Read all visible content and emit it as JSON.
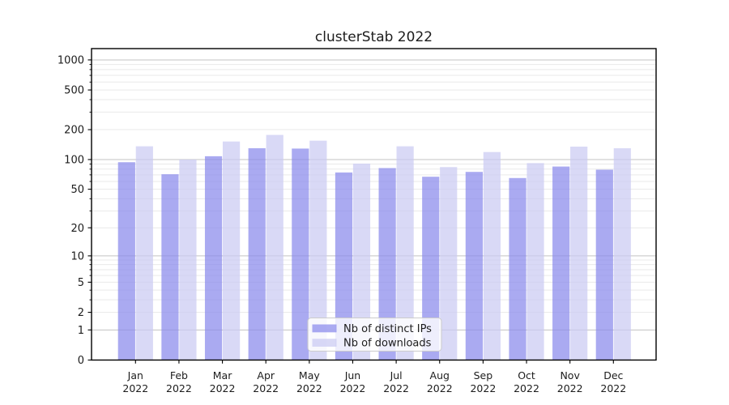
{
  "chart_data": {
    "type": "bar",
    "title": "clusterStab 2022",
    "xlabel": "",
    "ylabel": "",
    "categories": [
      "Jan",
      "Feb",
      "Mar",
      "Apr",
      "May",
      "Jun",
      "Jul",
      "Aug",
      "Sep",
      "Oct",
      "Nov",
      "Dec"
    ],
    "year_label": "2022",
    "series": [
      {
        "name": "Nb of distinct IPs",
        "color": "#8989ec",
        "fill_opacity": 0.72,
        "values": [
          94,
          71,
          108,
          130,
          129,
          74,
          82,
          67,
          75,
          65,
          85,
          79
        ]
      },
      {
        "name": "Nb of downloads",
        "color": "#cbcbf3",
        "fill_opacity": 0.72,
        "values": [
          136,
          100,
          152,
          177,
          155,
          91,
          136,
          84,
          119,
          92,
          135,
          130
        ]
      }
    ],
    "scale": "log1p",
    "yticks": [
      0,
      1,
      2,
      5,
      10,
      20,
      50,
      100,
      200,
      500,
      1000
    ],
    "ylim": [
      0,
      1285
    ],
    "grid": true,
    "grid_major_color": "#c3c3c3",
    "grid_minor_color": "#e9e9e9",
    "axis_color": "#000000",
    "legend_position": "lower-center",
    "legend_bg": "#ffffff",
    "legend_border": "#cccccc"
  }
}
